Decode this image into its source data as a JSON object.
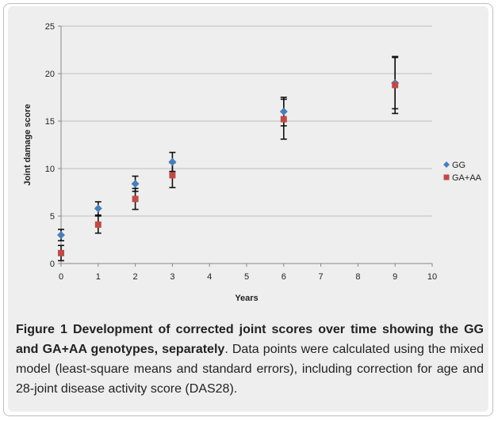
{
  "chart_data": {
    "type": "scatter",
    "xlabel": "Years",
    "ylabel": "Joint damage score",
    "xlim": [
      0,
      10
    ],
    "ylim": [
      0,
      25
    ],
    "x_ticks": [
      0,
      1,
      2,
      3,
      4,
      5,
      6,
      7,
      8,
      9,
      10
    ],
    "y_ticks": [
      0,
      5,
      10,
      15,
      20,
      25
    ],
    "grid": "horizontal",
    "legend_position": "right",
    "series": [
      {
        "name": "GG",
        "marker": "diamond",
        "color": "#4a7ebb",
        "points": [
          {
            "x": 0,
            "y": 3.0,
            "err": 0.6
          },
          {
            "x": 1,
            "y": 5.8,
            "err": 0.7
          },
          {
            "x": 2,
            "y": 8.4,
            "err": 0.8
          },
          {
            "x": 3,
            "y": 10.7,
            "err": 1.0
          },
          {
            "x": 6,
            "y": 16.0,
            "err": 1.5
          },
          {
            "x": 9,
            "y": 19.0,
            "err": 2.7
          }
        ]
      },
      {
        "name": "GA+AA",
        "marker": "square",
        "color": "#be4b48",
        "points": [
          {
            "x": 0,
            "y": 1.1,
            "err": 0.8
          },
          {
            "x": 1,
            "y": 4.1,
            "err": 0.9
          },
          {
            "x": 2,
            "y": 6.8,
            "err": 1.1
          },
          {
            "x": 3,
            "y": 9.3,
            "err": 1.3
          },
          {
            "x": 6,
            "y": 15.2,
            "err": 2.1
          },
          {
            "x": 9,
            "y": 18.8,
            "err": 3.0
          }
        ]
      }
    ]
  },
  "caption": {
    "label": "Figure 1 Development of corrected joint scores over time showing the GG and GA+AA genotypes, separately",
    "text": ". Data points were calculated using the mixed model (least-square means and standard errors), including correction for age and 28-joint disease activity score (DAS28)."
  }
}
